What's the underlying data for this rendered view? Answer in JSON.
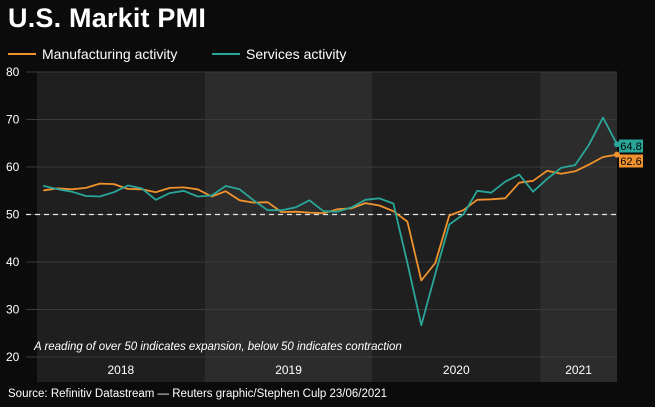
{
  "chart_data": {
    "type": "line",
    "title": "U.S. Markit PMI",
    "annotation": "A reading of over 50 indicates expansion, below 50 indicates contraction",
    "source": "Source: Refinitiv Datastream — Reuters graphic/Stephen Culp 23/06/2021",
    "ylim": [
      20,
      80
    ],
    "yticks": [
      20,
      30,
      40,
      50,
      60,
      70,
      80
    ],
    "x_start": "2017-12",
    "x_end": "2021-06",
    "year_labels": [
      {
        "label": "2018"
      },
      {
        "label": "2019"
      },
      {
        "label": "2020"
      },
      {
        "label": "2021"
      }
    ],
    "reference_line": 50,
    "grid": true,
    "legend_position": "top-left",
    "series": [
      {
        "name": "Manufacturing activity",
        "color": "#f0922e",
        "end_label": "62.6",
        "values": [
          55.1,
          55.5,
          55.3,
          55.6,
          56.5,
          56.4,
          55.4,
          55.3,
          54.7,
          55.6,
          55.7,
          55.3,
          53.8,
          54.9,
          53.0,
          52.5,
          52.6,
          50.5,
          50.6,
          50.4,
          50.3,
          51.1,
          51.3,
          52.4,
          51.9,
          50.7,
          48.5,
          36.1,
          39.8,
          49.8,
          50.9,
          53.1,
          53.2,
          53.4,
          56.7,
          57.1,
          59.2,
          58.6,
          59.1,
          60.5,
          62.1,
          62.6
        ]
      },
      {
        "name": "Services activity",
        "color": "#2aa698",
        "end_label": "64.8",
        "values": [
          56.0,
          55.3,
          54.8,
          53.9,
          53.8,
          54.7,
          56.1,
          55.5,
          53.1,
          54.5,
          55.0,
          53.8,
          54.0,
          56.0,
          55.3,
          53.0,
          50.9,
          50.9,
          51.5,
          53.0,
          50.7,
          50.6,
          51.5,
          53.1,
          53.4,
          52.3,
          39.8,
          26.7,
          37.5,
          47.9,
          50.0,
          55.0,
          54.6,
          56.9,
          58.4,
          54.8,
          57.5,
          59.8,
          60.4,
          64.7,
          70.4,
          64.8
        ]
      }
    ]
  }
}
